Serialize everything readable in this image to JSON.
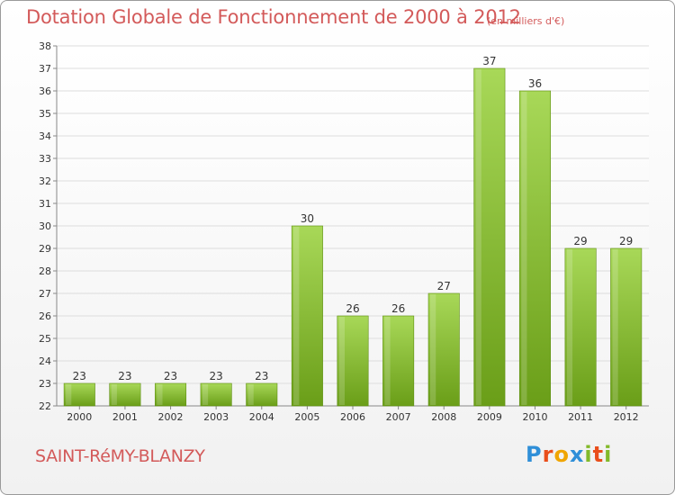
{
  "header": {
    "title": "Dotation Globale de Fonctionnement de 2000 à 2012",
    "subtitle": "(en milliers d'€)"
  },
  "footer": {
    "commune": "SAINT-RéMY-BLANZY",
    "logo_letters": [
      "P",
      "r",
      "o",
      "x",
      "i",
      "t",
      "i"
    ],
    "logo_colors": [
      "#2f8fd8",
      "#e94e1b",
      "#f0a500",
      "#2f8fd8",
      "#82b92a",
      "#e94e1b",
      "#82b92a"
    ]
  },
  "colors": {
    "bar_light": "#a8d858",
    "bar_dark": "#6a9e18",
    "grid": "#dddddd",
    "axis": "#888888",
    "text": "#333333",
    "accent": "#d35a5a"
  },
  "chart_data": {
    "type": "bar",
    "title": "Dotation Globale de Fonctionnement de 2000 à 2012",
    "subtitle": "(en milliers d'€)",
    "xlabel": "",
    "ylabel": "",
    "categories": [
      "2000",
      "2001",
      "2002",
      "2003",
      "2004",
      "2005",
      "2006",
      "2007",
      "2008",
      "2009",
      "2010",
      "2011",
      "2012"
    ],
    "values": [
      23,
      23,
      23,
      23,
      23,
      30,
      26,
      26,
      27,
      37,
      36,
      29,
      29
    ],
    "ylim": [
      22,
      38
    ],
    "yticks": [
      22,
      23,
      24,
      25,
      26,
      27,
      28,
      29,
      30,
      31,
      32,
      33,
      34,
      35,
      36,
      37,
      38
    ],
    "grid": true,
    "data_labels": true
  }
}
